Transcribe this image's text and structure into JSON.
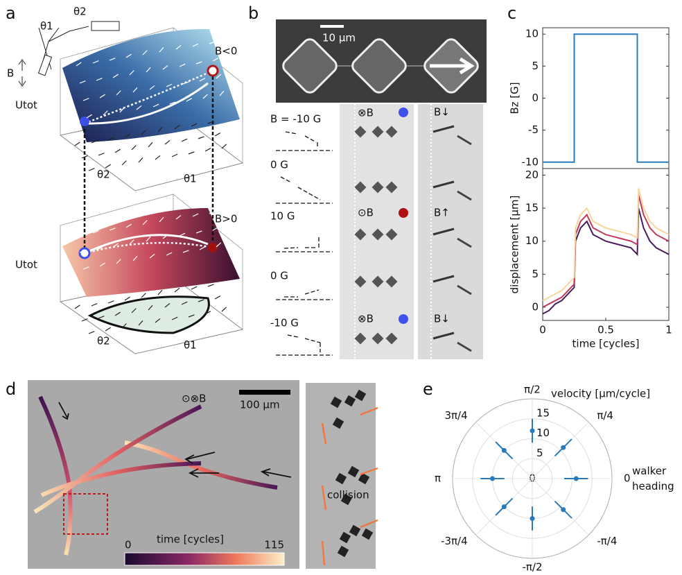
{
  "panel_labels": [
    "a",
    "b",
    "c",
    "d",
    "e"
  ],
  "panel_a": {
    "theta1": "θ1",
    "theta2": "θ2",
    "field": "B",
    "top": {
      "condition": "B<0",
      "energy": "Utot",
      "theta2": "θ2",
      "theta1": "θ1"
    },
    "bottom": {
      "condition": "B>0",
      "energy": "Utot",
      "theta2": "θ2",
      "theta1": "θ1"
    }
  },
  "panel_b": {
    "scale": "10 μm",
    "fields": [
      "B = -10 G",
      "0 G",
      "10 G",
      "0 G",
      "-10 G"
    ],
    "markers": [
      "⊗B",
      "⊙B",
      "⊗B"
    ],
    "arrows": [
      "B↓",
      "B↑",
      "B↓"
    ]
  },
  "panel_d": {
    "field": "⊙⊗B",
    "scale": "100 μm",
    "collision": "collision",
    "colorbar": {
      "label": "time [cycles]",
      "min": 0,
      "max": 115
    }
  },
  "chart_data": [
    {
      "type": "line",
      "ylabel": "Bz [G]",
      "color": "#2a7ab9",
      "x": [
        0,
        0.25,
        0.25,
        0.75,
        0.75,
        1
      ],
      "values": [
        -10,
        -10,
        10,
        10,
        -10,
        -10
      ],
      "xlim": [
        0,
        1
      ],
      "ylim": [
        -11,
        11
      ],
      "yticks": [
        -10,
        -5,
        0,
        5,
        10
      ]
    },
    {
      "type": "line",
      "xlabel": "time [cycles]",
      "ylabel": "displacement [μm]",
      "x": [
        0,
        0.05,
        0.1,
        0.15,
        0.2,
        0.25,
        0.26,
        0.3,
        0.35,
        0.4,
        0.5,
        0.6,
        0.7,
        0.75,
        0.76,
        0.8,
        0.85,
        0.9,
        1
      ],
      "series": [
        {
          "color": "#4a1a5c",
          "values": [
            -1,
            -0.5,
            0.5,
            1,
            2,
            3,
            10,
            12,
            13,
            11,
            10,
            9.5,
            9,
            8,
            15,
            12,
            10,
            9,
            8
          ]
        },
        {
          "color": "#c0395a",
          "values": [
            0,
            0.5,
            1,
            1.5,
            2.5,
            3.5,
            11,
            13,
            14,
            12,
            11,
            10.5,
            10,
            9.5,
            17,
            14,
            12,
            11,
            10
          ]
        },
        {
          "color": "#f6d69c",
          "values": [
            1,
            1.5,
            2,
            2.5,
            3.5,
            4.5,
            12,
            14,
            15,
            13,
            12,
            11.5,
            11,
            10.5,
            18,
            15,
            13,
            12,
            11
          ]
        }
      ],
      "xlim": [
        0,
        1
      ],
      "xticks": [
        0,
        0.5,
        1
      ],
      "ylim": [
        -2,
        21
      ],
      "yticks": [
        0,
        5,
        10,
        15,
        20
      ]
    },
    {
      "type": "polar",
      "title": "velocity [μm/cycle]",
      "theta_label": "walker heading",
      "color": "#2a7ab9",
      "theta": [
        0,
        0.7854,
        1.5708,
        2.3562,
        3.1416,
        -2.3562,
        -1.5708,
        -0.7854
      ],
      "values": [
        11,
        11,
        12,
        10,
        10,
        10,
        10,
        11
      ],
      "errors": [
        3,
        3,
        3,
        3,
        3,
        3,
        3,
        3
      ],
      "rlim": [
        0,
        20
      ],
      "rticks": [
        0,
        5,
        10,
        15
      ],
      "thetaticks": [
        0,
        {
          "value": 0.7854,
          "label": "π/4"
        },
        {
          "value": 1.5708,
          "label": "π/2"
        },
        {
          "value": 2.3562,
          "label": "3π/4"
        },
        {
          "value": 3.1416,
          "label": "π"
        },
        {
          "value": -2.3562,
          "label": "-3π/4"
        },
        {
          "value": -1.5708,
          "label": "-π/2"
        },
        {
          "value": -0.7854,
          "label": "-π/4"
        }
      ]
    }
  ]
}
